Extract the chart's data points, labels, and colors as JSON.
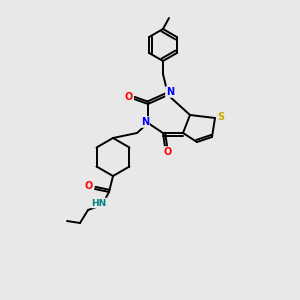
{
  "background_color": "#e8e8e8",
  "bond_color": "#000000",
  "atom_colors": {
    "N": "#0000ff",
    "O": "#ff0000",
    "S": "#ccaa00",
    "H": "#008080",
    "C": "#000000"
  },
  "figsize": [
    3.0,
    3.0
  ],
  "dpi": 100
}
